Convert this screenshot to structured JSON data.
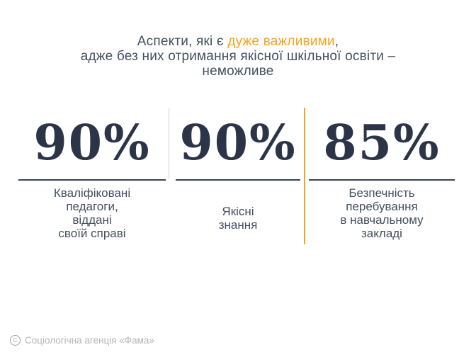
{
  "title": {
    "line1_pre": "Аспекти, які є ",
    "line1_highlight": "дуже важливими",
    "line1_post": ",",
    "line2": "адже без них отримання якісної шкільної освіти –",
    "line3": "неможливе"
  },
  "stats": [
    {
      "value": "90%",
      "lines": [
        "Кваліфіковані",
        "педагоги,",
        "віддані",
        "своїй справі"
      ]
    },
    {
      "value": "90%",
      "lines": [
        "Якісні",
        "знання"
      ]
    },
    {
      "value": "85%",
      "lines": [
        "Безпечність",
        "перебування",
        "в навчальному",
        "закладі"
      ]
    }
  ],
  "footer": {
    "logo_letter": "C",
    "text": "Соціологічна агенція «Фама»"
  },
  "colors": {
    "accent": "#F6A31C",
    "divider_accent": "#F2A71B",
    "divider_gray": "#CFCFCF",
    "number": "#2C3448",
    "text": "#454F60",
    "muted": "#B5B5B5"
  },
  "chart_data": {
    "type": "table",
    "title": "Аспекти, які є дуже важливими, адже без них отримання якісної шкільної освіти – неможливе",
    "categories": [
      "Кваліфіковані педагоги, віддані своїй справі",
      "Якісні знання",
      "Безпечність перебування в навчальному закладі"
    ],
    "values": [
      90,
      90,
      85
    ],
    "unit": "%"
  }
}
